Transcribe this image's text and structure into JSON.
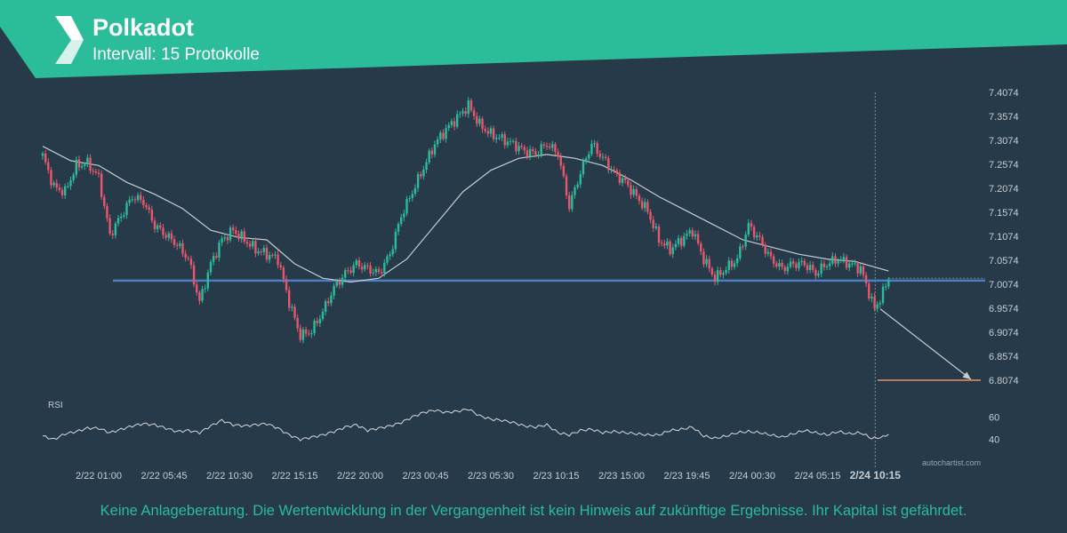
{
  "header": {
    "title": "Polkadot",
    "subtitle": "Intervall: 15 Protokolle"
  },
  "footer": {
    "disclaimer": "Keine Anlageberatung. Die Wertentwicklung in der Vergangenheit ist kein Hinweis auf zukünftige Ergebnisse. Ihr Kapital ist gefährdet."
  },
  "watermark": "autochartist.com",
  "colors": {
    "banner": "#2bbc9a",
    "background": "#263a4a",
    "up_candle": "#2bbc9a",
    "down_candle": "#e8576b",
    "support_line": "#4a7fc0",
    "target_line": "#f08a5d",
    "moving_average": "#c8ccd0",
    "rsi_line": "#d8dadc",
    "axis_text": "#c7cdd2"
  },
  "chart_data": {
    "type": "candlestick",
    "y_ticks": [
      "7.4074",
      "7.3574",
      "7.3074",
      "7.2574",
      "7.2074",
      "7.1574",
      "7.1074",
      "7.0574",
      "7.0074",
      "6.9574",
      "6.9074",
      "6.8574",
      "6.8074"
    ],
    "ylim": [
      6.8074,
      7.4074
    ],
    "x_ticks": [
      "2/22 01:00",
      "2/22 05:45",
      "2/22 10:30",
      "2/22 15:15",
      "2/22 20:00",
      "2/23 00:45",
      "2/23 05:30",
      "2/23 10:15",
      "2/23 15:00",
      "2/23 19:45",
      "2/24 00:30",
      "2/24 05:15"
    ],
    "current_time_label": "2/24 10:15",
    "support_level": 7.015,
    "target_level": 6.8074,
    "projection": {
      "from": 6.956,
      "to": 6.809
    },
    "close_path": [
      [
        0,
        7.275
      ],
      [
        4,
        7.21
      ],
      [
        8,
        7.2
      ],
      [
        12,
        7.255
      ],
      [
        16,
        7.26
      ],
      [
        20,
        7.23
      ],
      [
        24,
        7.11
      ],
      [
        28,
        7.15
      ],
      [
        32,
        7.19
      ],
      [
        36,
        7.18
      ],
      [
        40,
        7.13
      ],
      [
        44,
        7.11
      ],
      [
        48,
        7.09
      ],
      [
        52,
        7.06
      ],
      [
        56,
        6.97
      ],
      [
        60,
        7.05
      ],
      [
        64,
        7.1
      ],
      [
        68,
        7.12
      ],
      [
        72,
        7.1
      ],
      [
        76,
        7.08
      ],
      [
        80,
        7.07
      ],
      [
        84,
        7.06
      ],
      [
        88,
        6.97
      ],
      [
        92,
        6.9
      ],
      [
        96,
        6.91
      ],
      [
        100,
        6.95
      ],
      [
        104,
        7.0
      ],
      [
        108,
        7.03
      ],
      [
        112,
        7.05
      ],
      [
        116,
        7.04
      ],
      [
        120,
        7.03
      ],
      [
        124,
        7.07
      ],
      [
        128,
        7.15
      ],
      [
        132,
        7.2
      ],
      [
        136,
        7.25
      ],
      [
        140,
        7.3
      ],
      [
        144,
        7.33
      ],
      [
        148,
        7.355
      ],
      [
        152,
        7.38
      ],
      [
        156,
        7.34
      ],
      [
        160,
        7.32
      ],
      [
        164,
        7.31
      ],
      [
        168,
        7.3
      ],
      [
        172,
        7.285
      ],
      [
        176,
        7.28
      ],
      [
        180,
        7.3
      ],
      [
        184,
        7.28
      ],
      [
        188,
        7.17
      ],
      [
        192,
        7.24
      ],
      [
        196,
        7.3
      ],
      [
        200,
        7.27
      ],
      [
        204,
        7.24
      ],
      [
        208,
        7.22
      ],
      [
        212,
        7.19
      ],
      [
        216,
        7.16
      ],
      [
        220,
        7.1
      ],
      [
        224,
        7.08
      ],
      [
        228,
        7.1
      ],
      [
        232,
        7.12
      ],
      [
        236,
        7.06
      ],
      [
        240,
        7.02
      ],
      [
        244,
        7.04
      ],
      [
        248,
        7.06
      ],
      [
        252,
        7.13
      ],
      [
        256,
        7.1
      ],
      [
        260,
        7.06
      ],
      [
        264,
        7.04
      ],
      [
        268,
        7.05
      ],
      [
        272,
        7.05
      ],
      [
        276,
        7.03
      ],
      [
        280,
        7.05
      ],
      [
        284,
        7.06
      ],
      [
        288,
        7.05
      ],
      [
        292,
        7.04
      ],
      [
        295,
        6.99
      ],
      [
        297,
        6.955
      ],
      [
        300,
        6.99
      ],
      [
        302,
        7.02
      ]
    ],
    "moving_average": [
      [
        0,
        7.295
      ],
      [
        10,
        7.265
      ],
      [
        20,
        7.255
      ],
      [
        30,
        7.22
      ],
      [
        40,
        7.195
      ],
      [
        50,
        7.165
      ],
      [
        60,
        7.12
      ],
      [
        70,
        7.105
      ],
      [
        80,
        7.1
      ],
      [
        90,
        7.05
      ],
      [
        100,
        7.02
      ],
      [
        110,
        7.012
      ],
      [
        120,
        7.02
      ],
      [
        130,
        7.06
      ],
      [
        140,
        7.13
      ],
      [
        150,
        7.2
      ],
      [
        160,
        7.245
      ],
      [
        170,
        7.27
      ],
      [
        180,
        7.278
      ],
      [
        190,
        7.27
      ],
      [
        200,
        7.255
      ],
      [
        210,
        7.225
      ],
      [
        220,
        7.19
      ],
      [
        230,
        7.16
      ],
      [
        240,
        7.13
      ],
      [
        250,
        7.1
      ],
      [
        260,
        7.085
      ],
      [
        270,
        7.07
      ],
      [
        280,
        7.06
      ],
      [
        290,
        7.055
      ],
      [
        302,
        7.035
      ]
    ],
    "rsi": {
      "label": "RSI",
      "y_ticks": [
        60,
        40
      ],
      "path": [
        [
          0,
          43
        ],
        [
          4,
          40
        ],
        [
          8,
          45
        ],
        [
          12,
          47
        ],
        [
          16,
          50
        ],
        [
          20,
          50
        ],
        [
          24,
          46
        ],
        [
          28,
          49
        ],
        [
          32,
          52
        ],
        [
          36,
          54
        ],
        [
          40,
          53
        ],
        [
          44,
          50
        ],
        [
          48,
          47
        ],
        [
          52,
          48
        ],
        [
          56,
          46
        ],
        [
          60,
          52
        ],
        [
          64,
          57
        ],
        [
          68,
          53
        ],
        [
          72,
          52
        ],
        [
          76,
          53
        ],
        [
          80,
          54
        ],
        [
          84,
          50
        ],
        [
          88,
          44
        ],
        [
          92,
          40
        ],
        [
          96,
          42
        ],
        [
          100,
          44
        ],
        [
          104,
          47
        ],
        [
          108,
          51
        ],
        [
          112,
          53
        ],
        [
          116,
          48
        ],
        [
          120,
          50
        ],
        [
          124,
          52
        ],
        [
          128,
          55
        ],
        [
          132,
          60
        ],
        [
          136,
          64
        ],
        [
          140,
          66
        ],
        [
          144,
          64
        ],
        [
          148,
          65
        ],
        [
          152,
          67
        ],
        [
          156,
          61
        ],
        [
          160,
          58
        ],
        [
          164,
          57
        ],
        [
          168,
          55
        ],
        [
          172,
          52
        ],
        [
          176,
          51
        ],
        [
          180,
          53
        ],
        [
          184,
          46
        ],
        [
          188,
          44
        ],
        [
          192,
          48
        ],
        [
          196,
          49
        ],
        [
          200,
          46
        ],
        [
          204,
          47
        ],
        [
          208,
          46
        ],
        [
          212,
          45
        ],
        [
          216,
          44
        ],
        [
          220,
          44
        ],
        [
          224,
          48
        ],
        [
          228,
          49
        ],
        [
          232,
          51
        ],
        [
          236,
          43
        ],
        [
          240,
          41
        ],
        [
          244,
          43
        ],
        [
          248,
          46
        ],
        [
          252,
          47
        ],
        [
          256,
          46
        ],
        [
          260,
          44
        ],
        [
          264,
          42
        ],
        [
          268,
          45
        ],
        [
          272,
          48
        ],
        [
          276,
          46
        ],
        [
          280,
          44
        ],
        [
          284,
          47
        ],
        [
          288,
          45
        ],
        [
          292,
          46
        ],
        [
          296,
          41
        ],
        [
          300,
          42
        ],
        [
          302,
          45
        ]
      ]
    }
  }
}
